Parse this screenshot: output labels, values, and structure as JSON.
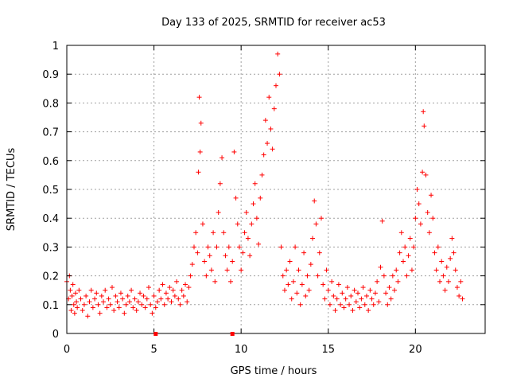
{
  "chart_data": {
    "type": "scatter",
    "title": "Day 133 of 2025, SRMTID for receiver ac53",
    "xlabel": "GPS time / hours",
    "ylabel": "SRMTID / TECUs",
    "xlim": [
      0,
      24
    ],
    "ylim": [
      0,
      1
    ],
    "xticks": [
      0,
      5,
      10,
      15,
      20
    ],
    "xtick_labels": [
      "0",
      "5",
      "10",
      "15",
      "20"
    ],
    "yticks": [
      0,
      0.1,
      0.2,
      0.3,
      0.4,
      0.5,
      0.6,
      0.7,
      0.8,
      0.9,
      1
    ],
    "ytick_labels": [
      "0",
      "0.1",
      "0.2",
      "0.3",
      "0.4",
      "0.5",
      "0.6",
      "0.7",
      "0.8",
      "0.9",
      "1"
    ],
    "grid": true,
    "marker": "+",
    "color": "#ff0000",
    "axis_markers_x": [
      5.1,
      9.5
    ],
    "series": [
      {
        "name": "SRMTID",
        "points": [
          [
            0.0,
            0.18
          ],
          [
            0.1,
            0.12
          ],
          [
            0.15,
            0.2
          ],
          [
            0.2,
            0.15
          ],
          [
            0.25,
            0.08
          ],
          [
            0.3,
            0.13
          ],
          [
            0.35,
            0.17
          ],
          [
            0.4,
            0.1
          ],
          [
            0.45,
            0.07
          ],
          [
            0.5,
            0.14
          ],
          [
            0.55,
            0.11
          ],
          [
            0.6,
            0.09
          ],
          [
            0.7,
            0.15
          ],
          [
            0.8,
            0.12
          ],
          [
            0.9,
            0.08
          ],
          [
            1.0,
            0.1
          ],
          [
            1.1,
            0.13
          ],
          [
            1.2,
            0.06
          ],
          [
            1.3,
            0.11
          ],
          [
            1.4,
            0.15
          ],
          [
            1.5,
            0.09
          ],
          [
            1.6,
            0.12
          ],
          [
            1.7,
            0.14
          ],
          [
            1.8,
            0.1
          ],
          [
            1.9,
            0.07
          ],
          [
            2.0,
            0.13
          ],
          [
            2.1,
            0.11
          ],
          [
            2.2,
            0.15
          ],
          [
            2.3,
            0.09
          ],
          [
            2.4,
            0.12
          ],
          [
            2.5,
            0.1
          ],
          [
            2.6,
            0.16
          ],
          [
            2.7,
            0.08
          ],
          [
            2.8,
            0.13
          ],
          [
            2.9,
            0.11
          ],
          [
            3.0,
            0.09
          ],
          [
            3.1,
            0.14
          ],
          [
            3.2,
            0.12
          ],
          [
            3.3,
            0.07
          ],
          [
            3.4,
            0.1
          ],
          [
            3.5,
            0.13
          ],
          [
            3.6,
            0.11
          ],
          [
            3.7,
            0.15
          ],
          [
            3.8,
            0.09
          ],
          [
            3.9,
            0.12
          ],
          [
            4.0,
            0.08
          ],
          [
            4.1,
            0.11
          ],
          [
            4.2,
            0.14
          ],
          [
            4.3,
            0.1
          ],
          [
            4.4,
            0.13
          ],
          [
            4.5,
            0.09
          ],
          [
            4.6,
            0.12
          ],
          [
            4.7,
            0.16
          ],
          [
            4.8,
            0.1
          ],
          [
            4.9,
            0.07
          ],
          [
            5.0,
            0.13
          ],
          [
            5.1,
            0.09
          ],
          [
            5.2,
            0.11
          ],
          [
            5.3,
            0.15
          ],
          [
            5.4,
            0.12
          ],
          [
            5.5,
            0.17
          ],
          [
            5.6,
            0.1
          ],
          [
            5.7,
            0.14
          ],
          [
            5.8,
            0.12
          ],
          [
            5.9,
            0.16
          ],
          [
            6.0,
            0.11
          ],
          [
            6.1,
            0.15
          ],
          [
            6.2,
            0.13
          ],
          [
            6.3,
            0.18
          ],
          [
            6.4,
            0.12
          ],
          [
            6.5,
            0.1
          ],
          [
            6.6,
            0.15
          ],
          [
            6.7,
            0.13
          ],
          [
            6.8,
            0.17
          ],
          [
            6.9,
            0.11
          ],
          [
            7.0,
            0.16
          ],
          [
            7.1,
            0.2
          ],
          [
            7.2,
            0.24
          ],
          [
            7.3,
            0.3
          ],
          [
            7.4,
            0.35
          ],
          [
            7.5,
            0.28
          ],
          [
            7.55,
            0.56
          ],
          [
            7.6,
            0.82
          ],
          [
            7.65,
            0.63
          ],
          [
            7.7,
            0.73
          ],
          [
            7.8,
            0.38
          ],
          [
            7.9,
            0.25
          ],
          [
            8.0,
            0.2
          ],
          [
            8.1,
            0.3
          ],
          [
            8.2,
            0.27
          ],
          [
            8.3,
            0.22
          ],
          [
            8.4,
            0.35
          ],
          [
            8.5,
            0.18
          ],
          [
            8.6,
            0.3
          ],
          [
            8.7,
            0.42
          ],
          [
            8.8,
            0.52
          ],
          [
            8.9,
            0.61
          ],
          [
            9.0,
            0.35
          ],
          [
            9.1,
            0.27
          ],
          [
            9.2,
            0.22
          ],
          [
            9.3,
            0.3
          ],
          [
            9.4,
            0.18
          ],
          [
            9.5,
            0.25
          ],
          [
            9.6,
            0.63
          ],
          [
            9.7,
            0.47
          ],
          [
            9.8,
            0.38
          ],
          [
            9.9,
            0.3
          ],
          [
            10.0,
            0.22
          ],
          [
            10.1,
            0.28
          ],
          [
            10.2,
            0.35
          ],
          [
            10.3,
            0.42
          ],
          [
            10.4,
            0.33
          ],
          [
            10.5,
            0.27
          ],
          [
            10.6,
            0.38
          ],
          [
            10.7,
            0.45
          ],
          [
            10.8,
            0.52
          ],
          [
            10.9,
            0.4
          ],
          [
            11.0,
            0.31
          ],
          [
            11.1,
            0.47
          ],
          [
            11.2,
            0.55
          ],
          [
            11.3,
            0.62
          ],
          [
            11.4,
            0.74
          ],
          [
            11.5,
            0.66
          ],
          [
            11.6,
            0.82
          ],
          [
            11.7,
            0.71
          ],
          [
            11.8,
            0.64
          ],
          [
            11.9,
            0.78
          ],
          [
            12.0,
            0.86
          ],
          [
            12.1,
            0.97
          ],
          [
            12.2,
            0.9
          ],
          [
            12.3,
            0.3
          ],
          [
            12.4,
            0.2
          ],
          [
            12.5,
            0.15
          ],
          [
            12.6,
            0.22
          ],
          [
            12.7,
            0.17
          ],
          [
            12.8,
            0.25
          ],
          [
            12.9,
            0.12
          ],
          [
            13.0,
            0.18
          ],
          [
            13.1,
            0.3
          ],
          [
            13.2,
            0.14
          ],
          [
            13.3,
            0.22
          ],
          [
            13.4,
            0.1
          ],
          [
            13.5,
            0.17
          ],
          [
            13.6,
            0.28
          ],
          [
            13.7,
            0.13
          ],
          [
            13.8,
            0.2
          ],
          [
            13.9,
            0.15
          ],
          [
            14.0,
            0.24
          ],
          [
            14.1,
            0.33
          ],
          [
            14.2,
            0.46
          ],
          [
            14.3,
            0.38
          ],
          [
            14.4,
            0.2
          ],
          [
            14.5,
            0.28
          ],
          [
            14.6,
            0.4
          ],
          [
            14.7,
            0.17
          ],
          [
            14.8,
            0.12
          ],
          [
            14.9,
            0.22
          ],
          [
            15.0,
            0.15
          ],
          [
            15.1,
            0.1
          ],
          [
            15.2,
            0.18
          ],
          [
            15.3,
            0.13
          ],
          [
            15.4,
            0.08
          ],
          [
            15.5,
            0.12
          ],
          [
            15.6,
            0.17
          ],
          [
            15.7,
            0.1
          ],
          [
            15.8,
            0.14
          ],
          [
            15.9,
            0.09
          ],
          [
            16.0,
            0.12
          ],
          [
            16.1,
            0.16
          ],
          [
            16.2,
            0.1
          ],
          [
            16.3,
            0.13
          ],
          [
            16.4,
            0.08
          ],
          [
            16.5,
            0.15
          ],
          [
            16.6,
            0.11
          ],
          [
            16.7,
            0.14
          ],
          [
            16.8,
            0.09
          ],
          [
            16.9,
            0.12
          ],
          [
            17.0,
            0.16
          ],
          [
            17.1,
            0.1
          ],
          [
            17.2,
            0.13
          ],
          [
            17.3,
            0.08
          ],
          [
            17.4,
            0.15
          ],
          [
            17.5,
            0.12
          ],
          [
            17.6,
            0.1
          ],
          [
            17.7,
            0.14
          ],
          [
            17.8,
            0.18
          ],
          [
            17.9,
            0.11
          ],
          [
            18.0,
            0.23
          ],
          [
            18.1,
            0.39
          ],
          [
            18.2,
            0.2
          ],
          [
            18.3,
            0.14
          ],
          [
            18.4,
            0.1
          ],
          [
            18.5,
            0.16
          ],
          [
            18.6,
            0.12
          ],
          [
            18.7,
            0.2
          ],
          [
            18.8,
            0.15
          ],
          [
            18.9,
            0.22
          ],
          [
            19.0,
            0.18
          ],
          [
            19.1,
            0.28
          ],
          [
            19.2,
            0.35
          ],
          [
            19.3,
            0.25
          ],
          [
            19.4,
            0.3
          ],
          [
            19.5,
            0.2
          ],
          [
            19.6,
            0.27
          ],
          [
            19.7,
            0.33
          ],
          [
            19.8,
            0.22
          ],
          [
            19.9,
            0.3
          ],
          [
            20.0,
            0.4
          ],
          [
            20.1,
            0.5
          ],
          [
            20.2,
            0.45
          ],
          [
            20.3,
            0.38
          ],
          [
            20.4,
            0.56
          ],
          [
            20.45,
            0.77
          ],
          [
            20.5,
            0.72
          ],
          [
            20.6,
            0.55
          ],
          [
            20.7,
            0.42
          ],
          [
            20.8,
            0.35
          ],
          [
            20.9,
            0.48
          ],
          [
            21.0,
            0.4
          ],
          [
            21.1,
            0.28
          ],
          [
            21.2,
            0.22
          ],
          [
            21.3,
            0.3
          ],
          [
            21.4,
            0.18
          ],
          [
            21.5,
            0.25
          ],
          [
            21.6,
            0.2
          ],
          [
            21.7,
            0.15
          ],
          [
            21.8,
            0.23
          ],
          [
            21.9,
            0.18
          ],
          [
            22.0,
            0.26
          ],
          [
            22.1,
            0.33
          ],
          [
            22.2,
            0.28
          ],
          [
            22.3,
            0.22
          ],
          [
            22.4,
            0.16
          ],
          [
            22.5,
            0.13
          ],
          [
            22.6,
            0.18
          ],
          [
            22.7,
            0.12
          ]
        ]
      }
    ]
  }
}
